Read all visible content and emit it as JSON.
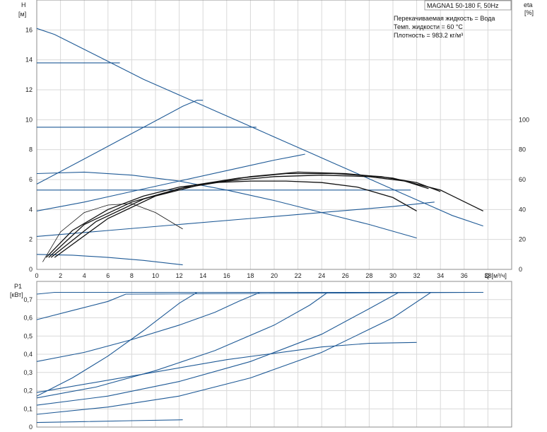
{
  "header": {
    "title": "MAGNA1 50-180 F, 50Hz",
    "conditions": [
      "Перекачиваемая жидкость = Вода",
      "Темп. жидкости = 60 °C",
      "Плотность = 983.2 кг/м³"
    ]
  },
  "chart_data": [
    {
      "type": "line",
      "name": "head-efficiency",
      "xlabel": "Q [м³/ч]",
      "ylabel_top": "H",
      "ylabel_unit": "[м]",
      "y2label_top": "eta",
      "y2label_unit": "[%]",
      "xlim": [
        0,
        40
      ],
      "ylim": [
        0,
        18
      ],
      "y2lim": [
        0,
        180
      ],
      "xticks": [
        0,
        2,
        4,
        6,
        8,
        10,
        12,
        14,
        16,
        18,
        20,
        22,
        24,
        26,
        28,
        30,
        32,
        34,
        36,
        38
      ],
      "yticks": [
        0,
        2,
        4,
        6,
        8,
        10,
        12,
        14,
        16
      ],
      "y2ticks": [
        0,
        20,
        40,
        60,
        80,
        100
      ],
      "grid": true,
      "head_curves": [
        {
          "x": [
            0,
            1.5,
            3,
            5,
            7,
            9,
            11,
            13,
            15,
            17,
            19,
            21,
            23,
            25,
            27,
            29,
            31,
            33,
            35,
            37.6
          ],
          "y": [
            16.1,
            15.7,
            15.1,
            14.3,
            13.5,
            12.7,
            12.0,
            11.3,
            10.6,
            9.9,
            9.2,
            8.5,
            7.8,
            7.1,
            6.4,
            5.7,
            5.0,
            4.3,
            3.6,
            2.9
          ]
        },
        {
          "x": [
            0,
            7
          ],
          "y": [
            13.8,
            13.8
          ]
        },
        {
          "x": [
            0,
            18.5
          ],
          "y": [
            9.5,
            9.5
          ]
        },
        {
          "x": [
            0,
            31.5
          ],
          "y": [
            5.3,
            5.3
          ]
        },
        {
          "x": [
            0,
            5,
            12.3,
            13.5,
            14
          ],
          "y": [
            5.7,
            7.8,
            10.9,
            11.3,
            11.3
          ]
        },
        {
          "x": [
            0,
            4,
            8,
            12,
            16,
            20,
            22,
            22.6
          ],
          "y": [
            3.9,
            4.5,
            5.2,
            5.9,
            6.6,
            7.3,
            7.6,
            7.7
          ]
        },
        {
          "x": [
            0,
            6,
            12,
            18,
            24,
            30,
            33.5
          ],
          "y": [
            2.2,
            2.6,
            3.0,
            3.4,
            3.8,
            4.2,
            4.5
          ]
        },
        {
          "x": [
            0,
            4,
            8,
            12,
            16,
            20,
            24,
            28,
            32
          ],
          "y": [
            6.4,
            6.5,
            6.3,
            5.9,
            5.3,
            4.6,
            3.8,
            3.0,
            2.1
          ]
        },
        {
          "x": [
            0,
            3,
            6,
            9,
            12.3
          ],
          "y": [
            1.0,
            0.95,
            0.8,
            0.6,
            0.3
          ]
        }
      ],
      "efficiency_curves": [
        {
          "x": [
            0.5,
            2,
            4,
            6,
            8,
            10,
            12.3
          ],
          "y": [
            5,
            25,
            38,
            43,
            44,
            38,
            27
          ]
        },
        {
          "x": [
            0.8,
            3,
            6,
            9,
            12,
            15,
            18,
            21,
            24,
            27,
            30,
            32
          ],
          "y": [
            8,
            26,
            40,
            49,
            55,
            58,
            59,
            59,
            58,
            55,
            48,
            39
          ]
        },
        {
          "x": [
            1,
            4,
            8,
            12,
            16,
            20,
            24,
            28,
            31,
            33
          ],
          "y": [
            8,
            30,
            45,
            54,
            59,
            62,
            63,
            62,
            59,
            54
          ]
        },
        {
          "x": [
            1.2,
            5,
            9,
            13,
            17,
            21,
            25,
            29,
            32,
            34
          ],
          "y": [
            8,
            32,
            47,
            56,
            61,
            64,
            64,
            62,
            58,
            52
          ]
        },
        {
          "x": [
            1.5,
            6,
            10,
            14,
            18,
            22,
            26,
            30,
            34,
            37.6
          ],
          "y": [
            8,
            34,
            49,
            57,
            62,
            65,
            64,
            61,
            53,
            39
          ]
        }
      ]
    },
    {
      "type": "line",
      "name": "power",
      "ylabel_top": "P1",
      "ylabel_unit": "[кВт]",
      "xlim": [
        0,
        40
      ],
      "ylim": [
        0,
        0.8
      ],
      "yticks": [
        "0",
        "0,1",
        "0,2",
        "0,3",
        "0,4",
        "0,5",
        "0,6",
        "0,7"
      ],
      "ytick_values": [
        0,
        0.1,
        0.2,
        0.3,
        0.4,
        0.5,
        0.6,
        0.7
      ],
      "grid": true,
      "power_curves": [
        {
          "x": [
            0,
            1.5,
            37.6
          ],
          "y": [
            0.73,
            0.74,
            0.74
          ]
        },
        {
          "x": [
            0,
            3,
            6,
            7.5,
            37.6
          ],
          "y": [
            0.59,
            0.64,
            0.69,
            0.73,
            0.74
          ]
        },
        {
          "x": [
            0,
            4,
            8,
            12,
            15,
            17,
            18.8,
            37.6
          ],
          "y": [
            0.36,
            0.41,
            0.48,
            0.56,
            0.63,
            0.69,
            0.74,
            0.74
          ]
        },
        {
          "x": [
            0,
            3,
            6,
            9,
            12,
            13.5,
            37.6
          ],
          "y": [
            0.17,
            0.27,
            0.39,
            0.53,
            0.68,
            0.74,
            0.74
          ]
        },
        {
          "x": [
            0,
            5,
            10,
            15,
            20,
            23,
            24.5,
            37.6
          ],
          "y": [
            0.16,
            0.22,
            0.31,
            0.42,
            0.56,
            0.67,
            0.74,
            0.74
          ]
        },
        {
          "x": [
            0,
            6,
            12,
            18,
            24,
            28,
            30.5,
            37.6
          ],
          "y": [
            0.12,
            0.17,
            0.25,
            0.36,
            0.51,
            0.65,
            0.74,
            0.74
          ]
        },
        {
          "x": [
            0,
            6,
            12,
            18,
            24,
            30,
            33.2,
            37.6
          ],
          "y": [
            0.07,
            0.11,
            0.17,
            0.27,
            0.41,
            0.6,
            0.74,
            0.74
          ]
        },
        {
          "x": [
            0,
            8,
            16,
            24,
            28,
            32
          ],
          "y": [
            0.19,
            0.28,
            0.37,
            0.44,
            0.46,
            0.465
          ]
        },
        {
          "x": [
            0,
            4,
            8,
            12.3
          ],
          "y": [
            0.025,
            0.03,
            0.035,
            0.04
          ]
        }
      ]
    }
  ]
}
